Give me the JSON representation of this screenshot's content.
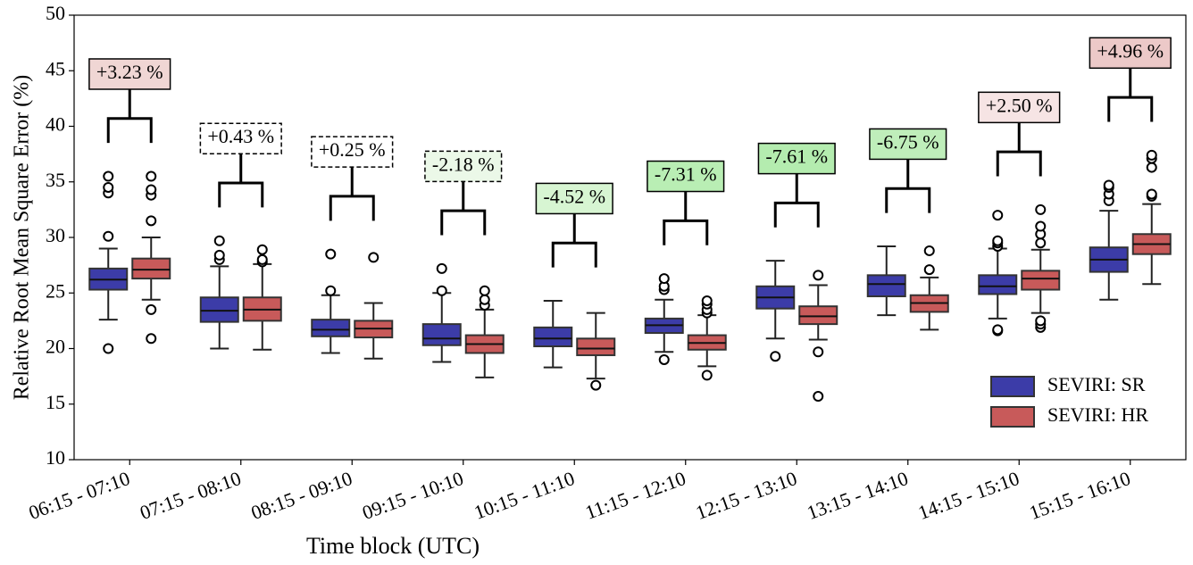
{
  "chart_data": {
    "type": "boxplot",
    "x_label": "Time block (UTC)",
    "y_label": "Relative Root Mean Square Error (%)",
    "categories": [
      "06:15 - 07:10",
      "07:15 - 08:10",
      "08:15 - 09:10",
      "09:15 - 10:10",
      "10:15 - 11:10",
      "11:15 - 12:10",
      "12:15 - 13:10",
      "13:15 - 14:10",
      "14:15 - 15:10",
      "15:15 - 16:10"
    ],
    "ylim": [
      10,
      50
    ],
    "yticks": [
      10,
      15,
      20,
      25,
      30,
      35,
      40,
      45,
      50
    ],
    "legend": "lower right",
    "series": [
      {
        "name": "SEVIRI: SR",
        "color": "#3c3ca8",
        "boxes": [
          {
            "min": 22.6,
            "q1": 25.3,
            "median": 26.2,
            "q3": 27.2,
            "max": 29.0,
            "outliers": [
              20.0,
              30.1,
              34.0,
              34.5,
              35.5
            ]
          },
          {
            "min": 20.0,
            "q1": 22.4,
            "median": 23.4,
            "q3": 24.6,
            "max": 27.4,
            "outliers": [
              28.0,
              28.4,
              29.7
            ]
          },
          {
            "min": 19.6,
            "q1": 21.1,
            "median": 21.7,
            "q3": 22.6,
            "max": 24.8,
            "outliers": [
              25.2,
              28.5
            ]
          },
          {
            "min": 18.8,
            "q1": 20.3,
            "median": 20.9,
            "q3": 22.2,
            "max": 25.0,
            "outliers": [
              25.2,
              27.2
            ]
          },
          {
            "min": 18.3,
            "q1": 20.2,
            "median": 20.9,
            "q3": 21.9,
            "max": 24.3,
            "outliers": []
          },
          {
            "min": 19.7,
            "q1": 21.4,
            "median": 22.1,
            "q3": 22.7,
            "max": 24.4,
            "outliers": [
              19.0,
              25.3,
              25.6,
              26.3
            ]
          },
          {
            "min": 20.9,
            "q1": 23.6,
            "median": 24.6,
            "q3": 25.6,
            "max": 27.9,
            "outliers": [
              19.3
            ]
          },
          {
            "min": 23.0,
            "q1": 24.7,
            "median": 25.8,
            "q3": 26.6,
            "max": 29.2,
            "outliers": []
          },
          {
            "min": 22.7,
            "q1": 24.9,
            "median": 25.6,
            "q3": 26.6,
            "max": 29.0,
            "outliers": [
              21.6,
              21.7,
              29.2,
              29.5,
              29.7,
              32.0
            ]
          },
          {
            "min": 24.4,
            "q1": 26.9,
            "median": 28.0,
            "q3": 29.1,
            "max": 32.4,
            "outliers": [
              33.3,
              33.9,
              34.5,
              34.7
            ]
          }
        ]
      },
      {
        "name": "SEVIRI: HR",
        "color": "#c85a5a",
        "boxes": [
          {
            "min": 24.4,
            "q1": 26.3,
            "median": 27.1,
            "q3": 28.1,
            "max": 30.0,
            "outliers": [
              20.9,
              23.5,
              31.5,
              33.8,
              34.3,
              35.5
            ]
          },
          {
            "min": 19.9,
            "q1": 22.5,
            "median": 23.5,
            "q3": 24.6,
            "max": 27.6,
            "outliers": [
              27.8,
              28.0,
              28.9
            ]
          },
          {
            "min": 19.1,
            "q1": 21.0,
            "median": 21.8,
            "q3": 22.5,
            "max": 24.1,
            "outliers": [
              28.2
            ]
          },
          {
            "min": 17.4,
            "q1": 19.6,
            "median": 20.4,
            "q3": 21.2,
            "max": 23.5,
            "outliers": [
              23.9,
              24.4,
              25.2
            ]
          },
          {
            "min": 17.3,
            "q1": 19.4,
            "median": 20.0,
            "q3": 20.9,
            "max": 23.2,
            "outliers": [
              16.7
            ]
          },
          {
            "min": 18.4,
            "q1": 19.9,
            "median": 20.5,
            "q3": 21.2,
            "max": 23.0,
            "outliers": [
              17.6,
              23.2,
              23.5,
              24.0,
              24.3
            ]
          },
          {
            "min": 20.8,
            "q1": 22.2,
            "median": 22.9,
            "q3": 23.8,
            "max": 25.7,
            "outliers": [
              15.7,
              19.7,
              26.6
            ]
          },
          {
            "min": 21.7,
            "q1": 23.3,
            "median": 24.1,
            "q3": 24.8,
            "max": 26.4,
            "outliers": [
              27.1,
              28.8
            ]
          },
          {
            "min": 23.2,
            "q1": 25.3,
            "median": 26.3,
            "q3": 27.0,
            "max": 28.9,
            "outliers": [
              21.9,
              22.2,
              22.5,
              29.5,
              30.3,
              31.0,
              32.5
            ]
          },
          {
            "min": 25.8,
            "q1": 28.5,
            "median": 29.4,
            "q3": 30.3,
            "max": 33.0,
            "outliers": [
              33.7,
              33.9,
              36.3,
              37.1,
              37.4
            ]
          }
        ]
      }
    ],
    "annotations": [
      {
        "text": "+3.23 %",
        "color": "#f0d6d4",
        "dashed": false
      },
      {
        "text": "+0.43 %",
        "color": "#ffffff",
        "dashed": true
      },
      {
        "text": "+0.25 %",
        "color": "#ffffff",
        "dashed": true
      },
      {
        "text": "-2.18 %",
        "color": "#ebf8e8",
        "dashed": true
      },
      {
        "text": "-4.52 %",
        "color": "#d7f5d2",
        "dashed": false
      },
      {
        "text": "-7.31 %",
        "color": "#b9eeb4",
        "dashed": false
      },
      {
        "text": "-7.61 %",
        "color": "#b4ecaf",
        "dashed": false
      },
      {
        "text": "-6.75 %",
        "color": "#bfeeba",
        "dashed": false
      },
      {
        "text": "+2.50 %",
        "color": "#f6e4e4",
        "dashed": false
      },
      {
        "text": "+4.96 %",
        "color": "#ecc9c8",
        "dashed": false
      }
    ]
  }
}
